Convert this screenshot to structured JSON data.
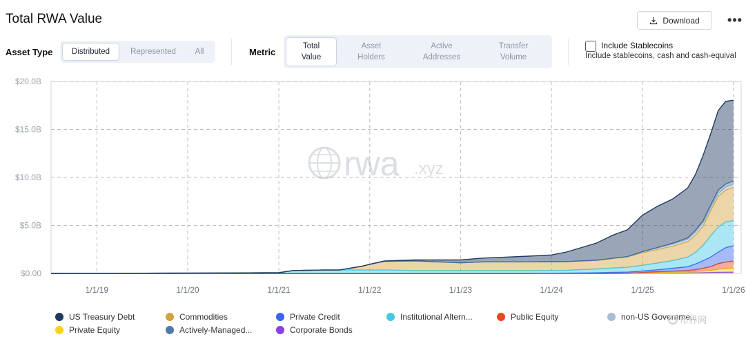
{
  "header": {
    "title": "Total RWA Value",
    "download_label": "Download",
    "more_label": "•••"
  },
  "asset_type": {
    "label": "Asset Type",
    "options": [
      "Distributed",
      "Represented",
      "All"
    ],
    "selected": "Distributed"
  },
  "metric": {
    "label": "Metric",
    "options": [
      {
        "line1": "Total",
        "line2": "Value"
      },
      {
        "line1": "Asset",
        "line2": "Holders"
      },
      {
        "line1": "Active",
        "line2": "Addresses"
      },
      {
        "line1": "Transfer",
        "line2": "Volume"
      }
    ],
    "selected": "Total Value"
  },
  "stablecoins": {
    "label": "Include Stablecoins",
    "description": "Include stablecoins, cash and cash-equival",
    "checked": false
  },
  "watermark": {
    "brand": "rwa",
    "suffix": ".xyz",
    "corner_text": "币界网"
  },
  "colors": {
    "us_treasury": "#1e3a5f",
    "commodities": "#d4a341",
    "private_credit": "#3b63f0",
    "institutional_alt": "#45c7e6",
    "public_equity": "#e8481c",
    "non_us_gov": "#a9bdd4",
    "private_equity": "#f7d416",
    "actively_managed": "#4f7ba6",
    "corporate_bonds": "#8b3ee6"
  },
  "chart_data": {
    "type": "area",
    "stacked": true,
    "title": "Total RWA Value",
    "xlabel": "",
    "ylabel": "",
    "x_ticks": [
      "1/1/19",
      "1/1/20",
      "1/1/21",
      "1/1/22",
      "1/1/23",
      "1/1/24",
      "1/1/25",
      "1/1/26"
    ],
    "y_ticks": [
      "$0.00",
      "$5.0B",
      "$10.0B",
      "$15.0B",
      "$20.0B"
    ],
    "ylim": [
      0,
      20
    ],
    "y_unit": "B USD",
    "grid": true,
    "legend_position": "bottom",
    "x": [
      "2018-07-01",
      "2019-01-01",
      "2019-07-01",
      "2020-01-01",
      "2020-07-01",
      "2021-01-01",
      "2021-03-01",
      "2021-07-01",
      "2021-09-01",
      "2021-12-01",
      "2022-01-01",
      "2022-03-01",
      "2022-07-01",
      "2022-10-01",
      "2023-01-01",
      "2023-04-01",
      "2023-07-01",
      "2023-10-01",
      "2024-01-01",
      "2024-03-01",
      "2024-05-01",
      "2024-07-01",
      "2024-09-01",
      "2024-11-01",
      "2025-01-01",
      "2025-03-01",
      "2025-05-01",
      "2025-07-01",
      "2025-08-01",
      "2025-09-01",
      "2025-10-01",
      "2025-11-01",
      "2025-12-01",
      "2026-01-01"
    ],
    "series": [
      {
        "name": "Corporate Bonds",
        "color": "#8b3ee6",
        "values": [
          0,
          0,
          0,
          0,
          0,
          0,
          0,
          0,
          0,
          0,
          0,
          0,
          0,
          0,
          0,
          0,
          0,
          0,
          0,
          0,
          0,
          0,
          0,
          0,
          0.02,
          0.03,
          0.04,
          0.05,
          0.06,
          0.08,
          0.1,
          0.12,
          0.13,
          0.14
        ]
      },
      {
        "name": "Private Equity",
        "color": "#f7d416",
        "values": [
          0,
          0,
          0,
          0,
          0,
          0,
          0,
          0,
          0,
          0,
          0,
          0,
          0,
          0,
          0,
          0,
          0,
          0,
          0,
          0,
          0,
          0,
          0,
          0,
          0.03,
          0.05,
          0.08,
          0.1,
          0.12,
          0.15,
          0.2,
          0.3,
          0.35,
          0.4
        ]
      },
      {
        "name": "Public Equity",
        "color": "#e8481c",
        "values": [
          0,
          0,
          0,
          0,
          0,
          0,
          0,
          0,
          0,
          0,
          0,
          0,
          0,
          0,
          0,
          0,
          0,
          0,
          0,
          0,
          0,
          0,
          0.01,
          0.02,
          0.05,
          0.1,
          0.12,
          0.15,
          0.2,
          0.3,
          0.4,
          0.6,
          0.7,
          0.75
        ]
      },
      {
        "name": "Private Credit",
        "color": "#3b63f0",
        "values": [
          0,
          0,
          0,
          0,
          0,
          0,
          0,
          0,
          0,
          0,
          0,
          0,
          0,
          0,
          0,
          0,
          0,
          0,
          0.02,
          0.03,
          0.05,
          0.07,
          0.1,
          0.12,
          0.15,
          0.2,
          0.3,
          0.4,
          0.6,
          0.8,
          1.0,
          1.2,
          1.5,
          1.6
        ]
      },
      {
        "name": "Institutional Alternative Funds",
        "color": "#45c7e6",
        "values": [
          0,
          0.01,
          0.02,
          0.03,
          0.05,
          0.08,
          0.3,
          0.35,
          0.35,
          0.35,
          0.35,
          0.35,
          0.3,
          0.3,
          0.3,
          0.3,
          0.3,
          0.3,
          0.3,
          0.3,
          0.35,
          0.4,
          0.45,
          0.5,
          0.6,
          0.7,
          0.8,
          1.0,
          1.2,
          1.6,
          2.2,
          2.6,
          2.7,
          2.6
        ]
      },
      {
        "name": "Commodities",
        "color": "#d4a341",
        "values": [
          0,
          0,
          0,
          0,
          0,
          0,
          0,
          0,
          0,
          0.4,
          0.6,
          0.9,
          1.0,
          0.9,
          0.8,
          0.9,
          0.9,
          0.9,
          0.9,
          0.9,
          0.9,
          0.9,
          1.0,
          1.1,
          1.3,
          1.4,
          1.5,
          1.6,
          1.8,
          2.0,
          2.6,
          3.2,
          3.3,
          3.5
        ]
      },
      {
        "name": "non-US Government Debt",
        "color": "#a9bdd4",
        "values": [
          0,
          0,
          0,
          0,
          0,
          0,
          0,
          0,
          0,
          0,
          0,
          0,
          0,
          0,
          0,
          0,
          0,
          0,
          0,
          0,
          0,
          0,
          0,
          0,
          0.1,
          0.15,
          0.2,
          0.25,
          0.3,
          0.3,
          0.3,
          0.3,
          0.3,
          0.3
        ]
      },
      {
        "name": "Actively-Managed Strategies",
        "color": "#4f7ba6",
        "values": [
          0,
          0,
          0,
          0,
          0,
          0,
          0,
          0,
          0,
          0,
          0,
          0,
          0,
          0,
          0,
          0,
          0,
          0,
          0,
          0,
          0,
          0,
          0,
          0,
          0.02,
          0.05,
          0.1,
          0.15,
          0.2,
          0.25,
          0.3,
          0.35,
          0.35,
          0.35
        ]
      },
      {
        "name": "US Treasury Debt",
        "color": "#1e3a5f",
        "values": [
          0,
          0,
          0,
          0,
          0,
          0,
          0,
          0,
          0,
          0,
          0,
          0.05,
          0.1,
          0.2,
          0.3,
          0.4,
          0.5,
          0.6,
          0.7,
          1.0,
          1.4,
          1.8,
          2.4,
          2.8,
          3.8,
          4.3,
          4.6,
          5.2,
          5.8,
          6.8,
          7.4,
          8.3,
          8.6,
          8.4
        ]
      }
    ]
  },
  "legend": [
    {
      "name": "US Treasury Debt",
      "color": "#1e3a5f"
    },
    {
      "name": "Commodities",
      "color": "#d4a341"
    },
    {
      "name": "Private Credit",
      "color": "#3b63f0"
    },
    {
      "name": "Institutional Altern...",
      "color": "#45c7e6"
    },
    {
      "name": "Public Equity",
      "color": "#e8481c"
    },
    {
      "name": "non-US Governme...",
      "color": "#a9bdd4"
    },
    {
      "name": "Private Equity",
      "color": "#f7d416"
    },
    {
      "name": "Actively-Managed...",
      "color": "#4f7ba6"
    },
    {
      "name": "Corporate Bonds",
      "color": "#8b3ee6"
    }
  ]
}
